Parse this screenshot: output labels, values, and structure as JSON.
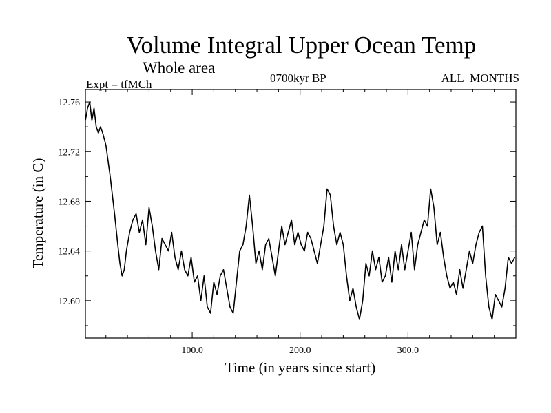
{
  "chart_data": {
    "type": "line",
    "title": "Volume Integral Upper Ocean Temp",
    "subtitle": "Whole area",
    "experiment": "Expt = tfMCh",
    "period": "0700kyr BP",
    "months": "ALL_MONTHS",
    "xlabel": "Time (in years since start)",
    "ylabel": "Temperature (in C)",
    "xlim": [
      1,
      400
    ],
    "ylim": [
      12.57,
      12.77
    ],
    "xticks": [
      100,
      200,
      300
    ],
    "xtick_labels": [
      "100.0",
      "200.0",
      "300.0"
    ],
    "yticks": [
      12.6,
      12.64,
      12.68,
      12.72,
      12.76
    ],
    "ytick_labels": [
      "12.60",
      "12.64",
      "12.68",
      "12.72",
      "12.76"
    ],
    "grid": false,
    "legend": "none",
    "series": [
      {
        "color": "#000000",
        "x": [
          1,
          3,
          5,
          7,
          9,
          11,
          13,
          15,
          17,
          20,
          24,
          28,
          31,
          33,
          35,
          37,
          39,
          42,
          45,
          48,
          51,
          54,
          57,
          60,
          63,
          66,
          69,
          72,
          75,
          78,
          81,
          84,
          87,
          90,
          93,
          96,
          99,
          102,
          105,
          108,
          111,
          114,
          117,
          120,
          123,
          126,
          129,
          132,
          135,
          138,
          141,
          144,
          147,
          150,
          153,
          156,
          159,
          162,
          165,
          168,
          171,
          174,
          177,
          180,
          183,
          186,
          189,
          192,
          195,
          198,
          201,
          204,
          207,
          210,
          213,
          216,
          219,
          222,
          225,
          228,
          231,
          234,
          237,
          240,
          243,
          246,
          249,
          252,
          255,
          258,
          261,
          264,
          267,
          270,
          273,
          276,
          279,
          282,
          285,
          288,
          291,
          294,
          297,
          300,
          303,
          306,
          309,
          312,
          315,
          318,
          321,
          324,
          327,
          330,
          333,
          336,
          339,
          342,
          345,
          348,
          351,
          354,
          357,
          360,
          363,
          366,
          369,
          372,
          375,
          378,
          381,
          384,
          387,
          390,
          393,
          396,
          399
        ],
        "values": [
          12.745,
          12.755,
          12.76,
          12.745,
          12.755,
          12.74,
          12.735,
          12.74,
          12.735,
          12.725,
          12.7,
          12.67,
          12.645,
          12.63,
          12.62,
          12.625,
          12.64,
          12.655,
          12.665,
          12.67,
          12.655,
          12.665,
          12.645,
          12.675,
          12.66,
          12.64,
          12.625,
          12.65,
          12.645,
          12.64,
          12.655,
          12.635,
          12.625,
          12.64,
          12.625,
          12.62,
          12.635,
          12.615,
          12.62,
          12.6,
          12.62,
          12.595,
          12.59,
          12.615,
          12.605,
          12.62,
          12.625,
          12.61,
          12.595,
          12.59,
          12.615,
          12.64,
          12.645,
          12.66,
          12.685,
          12.66,
          12.63,
          12.64,
          12.625,
          12.645,
          12.65,
          12.635,
          12.62,
          12.64,
          12.66,
          12.645,
          12.655,
          12.665,
          12.645,
          12.655,
          12.645,
          12.64,
          12.655,
          12.65,
          12.64,
          12.63,
          12.645,
          12.66,
          12.69,
          12.685,
          12.66,
          12.645,
          12.655,
          12.645,
          12.62,
          12.6,
          12.61,
          12.595,
          12.585,
          12.6,
          12.63,
          12.62,
          12.64,
          12.625,
          12.635,
          12.615,
          12.62,
          12.635,
          12.615,
          12.64,
          12.625,
          12.645,
          12.625,
          12.64,
          12.655,
          12.625,
          12.645,
          12.655,
          12.665,
          12.66,
          12.69,
          12.675,
          12.645,
          12.655,
          12.635,
          12.62,
          12.61,
          12.615,
          12.605,
          12.625,
          12.61,
          12.625,
          12.64,
          12.63,
          12.645,
          12.655,
          12.66,
          12.62,
          12.595,
          12.585,
          12.605,
          12.6,
          12.595,
          12.61,
          12.635,
          12.63,
          12.635
        ]
      }
    ]
  }
}
